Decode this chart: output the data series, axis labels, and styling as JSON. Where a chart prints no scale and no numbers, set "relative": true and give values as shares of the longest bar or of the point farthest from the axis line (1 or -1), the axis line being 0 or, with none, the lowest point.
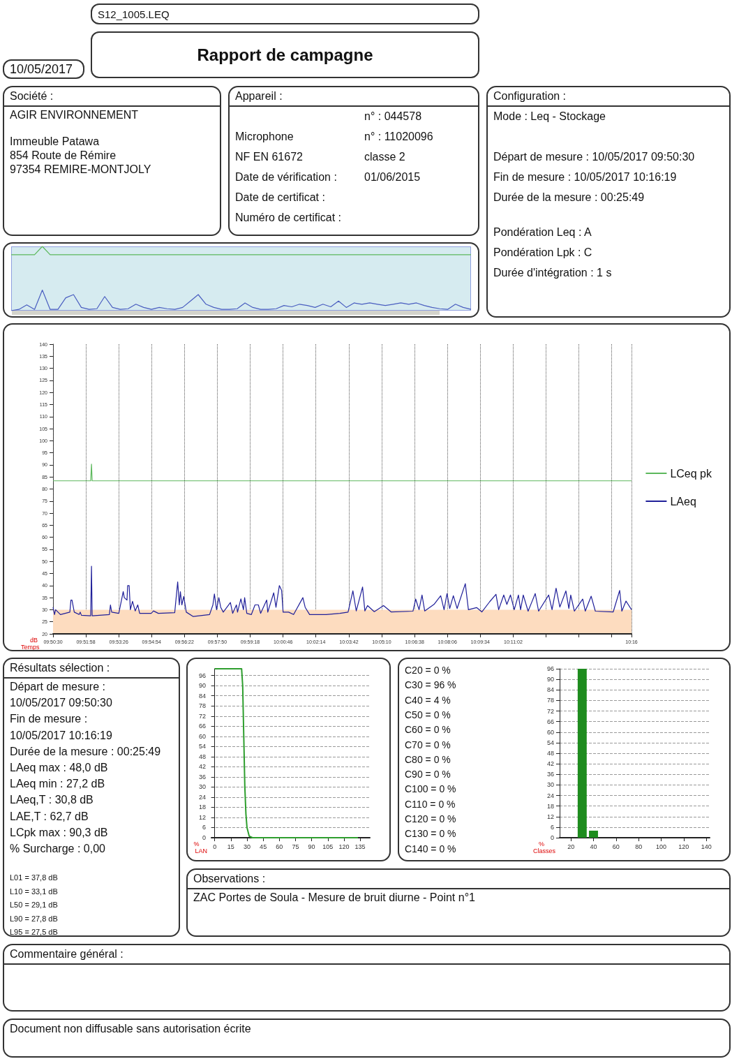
{
  "chart_data": [
    {
      "type": "other",
      "title": "Rapport de campagne",
      "annotations": [
        "S12_1005.LEQ",
        "10/05/2017"
      ]
    },
    {
      "type": "other",
      "title": "Société :",
      "annotations": [
        "AGIR ENVIRONNEMENT",
        "Immeuble Patawa",
        "854 Route de Rémire",
        "97354  REMIRE-MONTJOLY"
      ]
    },
    {
      "type": "other",
      "title": "Appareil :",
      "annotations": [
        "n° : 044578",
        "Microphone",
        "n° : 11020096",
        "NF EN 61672",
        "classe 2",
        "Date de vérification :",
        "01/06/2015",
        "Date de certificat :",
        "Numéro de certificat :"
      ]
    },
    {
      "type": "other",
      "title": "Configuration :",
      "annotations": [
        "Mode : Leq - Stockage",
        "Départ de mesure : 10/05/2017 09:50:30",
        "Fin de mesure : 10/05/2017 10:16:19",
        "Durée de la mesure : 00:25:49",
        "Pondération Leq : A",
        "Pondération Lpk : C",
        "Durée d'intégration : 1 s"
      ]
    },
    {
      "type": "line",
      "relative": true,
      "categories": [
        null,
        null,
        null,
        null,
        null,
        null,
        null,
        null,
        null,
        null,
        null,
        null,
        null,
        null,
        null,
        null,
        null,
        null,
        null,
        null,
        null,
        null,
        null,
        null,
        null,
        null,
        null,
        null,
        null,
        null,
        null,
        null,
        null,
        null,
        null,
        null,
        null,
        null,
        null,
        null,
        null,
        null,
        null,
        null,
        null,
        null,
        null,
        null,
        null,
        null,
        null,
        null,
        null,
        null,
        null,
        null,
        null,
        null,
        null,
        null
      ],
      "series": [
        {
          "color": "#5cb85c",
          "values": [
            0.87,
            0.87,
            0.87,
            0.87,
            1,
            0.87,
            0.87,
            0.87,
            0.87,
            0.87,
            0.87,
            0.87,
            0.87,
            0.87,
            0.87,
            0.87,
            0.87,
            0.87,
            0.87,
            0.87,
            0.87,
            0.87,
            0.87,
            0.87,
            0.87,
            0.87,
            0.87,
            0.87,
            0.87,
            0.87,
            0.87,
            0.87,
            0.87,
            0.87,
            0.87,
            0.87,
            0.87,
            0.87,
            0.87,
            0.87,
            0.87,
            0.87,
            0.87,
            0.87,
            0.87,
            0.87,
            0.87,
            0.87,
            0.87,
            0.87,
            0.87,
            0.87,
            0.87,
            0.87,
            0.87,
            0.87,
            0.87,
            0.87,
            0.87,
            0.87
          ]
        },
        {
          "color": "#4a5ec0",
          "values": [
            0,
            0.02,
            0.09,
            0.02,
            0.32,
            0.02,
            0.02,
            0.2,
            0.25,
            0.05,
            0.02,
            0.03,
            0.22,
            0.05,
            0.02,
            0.03,
            0.1,
            0.05,
            0.02,
            0.05,
            0.03,
            0.02,
            0.05,
            0.15,
            0.25,
            0.1,
            0.05,
            0.02,
            0.02,
            0.03,
            0.12,
            0.05,
            0.02,
            0.02,
            0.03,
            0.08,
            0.06,
            0.1,
            0.08,
            0.05,
            0.1,
            0.06,
            0.15,
            0.05,
            0.12,
            0.1,
            0.12,
            0.1,
            0.08,
            0.1,
            0.12,
            0.1,
            0.12,
            0.08,
            0.05,
            0.03,
            0.02,
            0.1,
            0.05,
            0.02
          ]
        }
      ]
    },
    {
      "type": "line",
      "xlabel": "Temps",
      "ylabel": "dB",
      "xlim": [
        9.8417,
        10.2719
      ],
      "ylim": [
        20,
        140
      ],
      "grid": "x",
      "legend": "right",
      "xticks": [
        {
          "value": 9.8417,
          "label": "09:50:30"
        },
        {
          "value": 9.8661,
          "label": "09:51:58"
        },
        {
          "value": 9.8906,
          "label": "09:53:26"
        },
        {
          "value": 9.915,
          "label": "09:54:54"
        },
        {
          "value": 9.9394,
          "label": "09:56:22"
        },
        {
          "value": 9.9639,
          "label": "09:57:50"
        },
        {
          "value": 9.9883,
          "label": "09:59:18"
        },
        {
          "value": 10.0128,
          "label": "10:00:46"
        },
        {
          "value": 10.0372,
          "label": "10:02:14"
        },
        {
          "value": 10.0617,
          "label": "10:03:42"
        },
        {
          "value": 10.0861,
          "label": "10:05:10"
        },
        {
          "value": 10.1106,
          "label": "10:06:38"
        },
        {
          "value": 10.135,
          "label": "10:08:06"
        },
        {
          "value": 10.1594,
          "label": "10:09:34"
        },
        {
          "value": 10.1839,
          "label": "10:11:02"
        },
        {
          "value": 10.2083,
          "label": null
        },
        {
          "value": 10.2328,
          "label": null
        },
        {
          "value": 10.2572,
          "label": null
        },
        {
          "value": 10.2719,
          "label": "10:16"
        }
      ],
      "yticks": [
        20,
        25,
        30,
        35,
        40,
        45,
        50,
        55,
        60,
        65,
        70,
        75,
        80,
        85,
        90,
        95,
        100,
        105,
        110,
        115,
        120,
        125,
        130,
        135,
        140
      ],
      "bands": [
        {
          "axis": "y",
          "from": 20,
          "to": 30,
          "color": "#fddcbf"
        }
      ],
      "series": [
        {
          "name": "LCeq pk",
          "color": "#5cb85c",
          "x": [
            9.8417,
            9.8697,
            9.8703,
            9.8708,
            10.2719
          ],
          "values": [
            83.4,
            83.4,
            90.3,
            83.4,
            83.4
          ]
        },
        {
          "name": "LAeq",
          "color": "#1f1f99",
          "x": [
            9.8417,
            9.8428,
            9.8436,
            9.8472,
            9.8542,
            9.855,
            9.8558,
            9.8575,
            9.8611,
            9.8619,
            9.8628,
            9.8697,
            9.8703,
            9.8708,
            9.8836,
            9.8844,
            9.8853,
            9.8906,
            9.8939,
            9.8947,
            9.8967,
            9.8972,
            9.8983,
            9.8992,
            9.9008,
            9.9028,
            9.9047,
            9.9061,
            9.9147,
            9.9164,
            9.92,
            9.9322,
            9.9344,
            9.9356,
            9.9364,
            9.9375,
            9.9389,
            9.9408,
            9.9458,
            9.9581,
            9.9606,
            9.9617,
            9.9633,
            9.965,
            9.9664,
            9.9683,
            9.9736,
            9.9753,
            9.9781,
            9.9789,
            9.9814,
            9.9833,
            9.9842,
            9.9858,
            9.9892,
            9.9919,
            9.9944,
            9.9961,
            10.0006,
            10.0014,
            10.0058,
            10.0075,
            10.01,
            10.0117,
            10.0128,
            10.0169,
            10.0206,
            10.0275,
            10.0292,
            10.0325,
            10.0447,
            10.055,
            10.0611,
            10.0647,
            10.0672,
            10.0719,
            10.0736,
            10.0756,
            10.0806,
            10.0875,
            10.0931,
            10.1094,
            10.1114,
            10.1139,
            10.1161,
            10.1181,
            10.125,
            10.13,
            10.1325,
            10.1347,
            10.1367,
            10.1394,
            10.1422,
            10.1483,
            10.1506,
            10.1567,
            10.1606,
            10.1664,
            10.1711,
            10.1731,
            10.1769,
            10.1792,
            10.1819,
            10.1847,
            10.1878,
            10.1894,
            10.1914,
            10.195,
            10.2003,
            10.2028,
            10.2103,
            10.2128,
            10.2158,
            10.2186,
            10.2231,
            10.2253,
            10.2267,
            10.2294,
            10.2356,
            10.2375,
            10.2419,
            10.245,
            10.2583,
            10.2631,
            10.2647,
            10.2678,
            10.2719
          ],
          "values": [
            31,
            28,
            30,
            28,
            29,
            34,
            34,
            29,
            28,
            29,
            27.7,
            27.5,
            48,
            27.5,
            28,
            32,
            29,
            28.5,
            37.5,
            35,
            34,
            40,
            40,
            30,
            33.5,
            29.5,
            32,
            28.5,
            28.5,
            29.5,
            28.5,
            28.8,
            41.5,
            32,
            37.5,
            32,
            35.5,
            29,
            27.2,
            28,
            32,
            36.5,
            30,
            35,
            31,
            29,
            33,
            28.5,
            32,
            29,
            34.5,
            30,
            35,
            28.5,
            28,
            32,
            32,
            28.5,
            34,
            29,
            37,
            31,
            40,
            38,
            29,
            29,
            28,
            35,
            31,
            28,
            28,
            28.5,
            29,
            37.8,
            29.5,
            39.4,
            29.5,
            31.7,
            29.2,
            31.7,
            29.1,
            29.4,
            34.4,
            30,
            36.1,
            29.5,
            32.2,
            35.8,
            30,
            36.7,
            30.5,
            35.8,
            30.5,
            40.8,
            30,
            30.9,
            29.1,
            33.3,
            36.4,
            30,
            36.1,
            32.2,
            36.1,
            30,
            36.1,
            30,
            36.1,
            29.4,
            36.7,
            29.4,
            36.1,
            30,
            38.9,
            31.1,
            37.8,
            30.5,
            36.1,
            29.4,
            34.4,
            29.4,
            35.6,
            29.4,
            29.1,
            38,
            29.4,
            33.6,
            30
          ]
        }
      ]
    },
    {
      "type": "other",
      "title": "Résultats sélection :",
      "annotations": [
        "Départ de mesure :",
        "10/05/2017 09:50:30",
        "Fin de mesure :",
        "10/05/2017 10:16:19",
        "Durée de la mesure : 00:25:49",
        "LAeq max : 48,0 dB",
        "LAeq min : 27,2 dB",
        "LAeq,T : 30,8 dB",
        "LAE,T : 62,7 dB",
        "LCpk max : 90,3 dB",
        "% Surcharge : 0,00",
        "L01 = 37,8 dB",
        "L10 = 33,1 dB",
        "L50 = 29,1 dB",
        "L90 = 27,8 dB",
        "L95 = 27,5 dB"
      ]
    },
    {
      "type": "line",
      "xlabel": "LAN",
      "ylabel": "%",
      "xlim": [
        -3,
        144
      ],
      "ylim": [
        0,
        100
      ],
      "grid": "y",
      "xticks": [
        0,
        15,
        30,
        45,
        60,
        75,
        90,
        105,
        120,
        135
      ],
      "yticks": [
        0,
        6,
        12,
        18,
        24,
        30,
        36,
        42,
        48,
        54,
        60,
        66,
        72,
        78,
        84,
        90,
        96
      ],
      "series": [
        {
          "color": "#2e9e2e",
          "x": [
            0,
            25,
            26,
            27,
            28,
            29,
            30,
            32,
            35,
            133
          ],
          "values": [
            100,
            100,
            90,
            60,
            30,
            14,
            6,
            1,
            0,
            0
          ]
        }
      ]
    },
    {
      "type": "bar",
      "xlabel": "Classes",
      "ylabel": "%",
      "xlim": [
        10,
        143
      ],
      "ylim": [
        0,
        96
      ],
      "grid": "y",
      "xticks": [
        20,
        40,
        60,
        80,
        100,
        120,
        140
      ],
      "yticks": [
        0,
        6,
        12,
        18,
        24,
        30,
        36,
        42,
        48,
        54,
        60,
        66,
        72,
        78,
        84,
        90,
        96
      ],
      "annotations": [
        "C20 = 0 %",
        "C30 = 96 %",
        "C40 = 4 %",
        "C50 = 0 %",
        "C60 = 0 %",
        "C70 = 0 %",
        "C80 = 0 %",
        "C90 = 0 %",
        "C100 = 0 %",
        "C110 = 0 %",
        "C120 = 0 %",
        "C130 = 0 %",
        "C140 = 0 %"
      ],
      "series": [
        {
          "color": "#1e8c1e",
          "x": [
            20,
            30,
            40,
            50,
            60,
            70,
            80,
            90,
            100,
            110,
            120,
            130,
            140
          ],
          "values": [
            0,
            96,
            4,
            0,
            0,
            0,
            0,
            0,
            0,
            0,
            0,
            0,
            0
          ]
        }
      ]
    },
    {
      "type": "other",
      "title": "Observations :",
      "annotations": [
        "ZAC Portes de Soula - Mesure de bruit diurne - Point n°1"
      ]
    },
    {
      "type": "other",
      "title": "Commentaire général :"
    },
    {
      "type": "other",
      "title": "Document non diffusable sans autorisation écrite"
    }
  ]
}
